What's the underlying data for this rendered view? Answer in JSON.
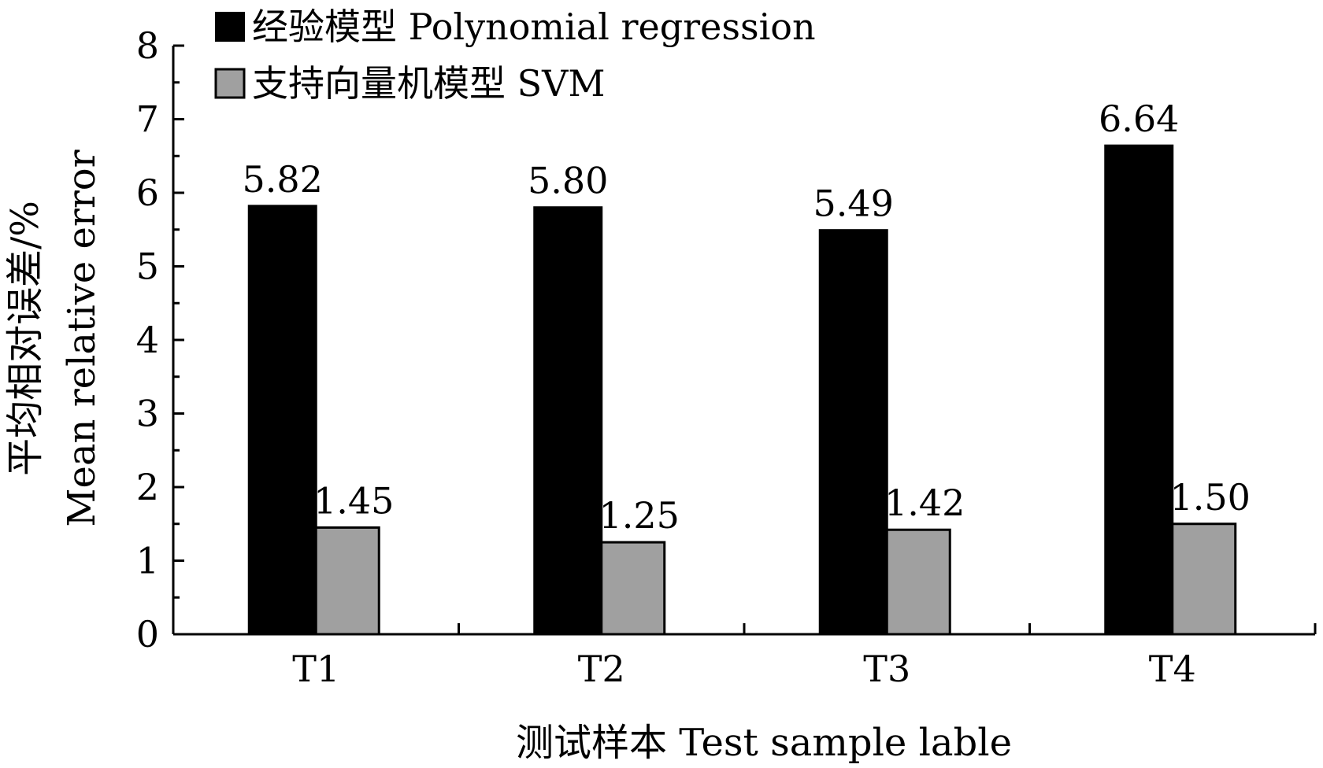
{
  "chart_data": {
    "type": "bar",
    "categories": [
      "T1",
      "T2",
      "T3",
      "T4"
    ],
    "series": [
      {
        "name": "经验模型  Polynomial regression",
        "values": [
          5.82,
          5.8,
          5.49,
          6.64
        ],
        "labels": [
          "5.82",
          "5.80",
          "5.49",
          "6.64"
        ],
        "color": "#000000"
      },
      {
        "name": "支持向量机模型 SVM",
        "values": [
          1.45,
          1.25,
          1.42,
          1.5
        ],
        "labels": [
          "1.45",
          "1.25",
          "1.42",
          "1.50"
        ],
        "color": "#a0a0a0"
      }
    ],
    "xlabel": "测试样本  Test sample lable",
    "ylabel_cn": "平均相对误差/%",
    "ylabel_en": "Mean relative error",
    "ylim": [
      0,
      8
    ],
    "yticks": [
      "0",
      "1",
      "2",
      "3",
      "4",
      "5",
      "6",
      "7",
      "8"
    ],
    "grid": false,
    "legend_position": "top-left"
  }
}
